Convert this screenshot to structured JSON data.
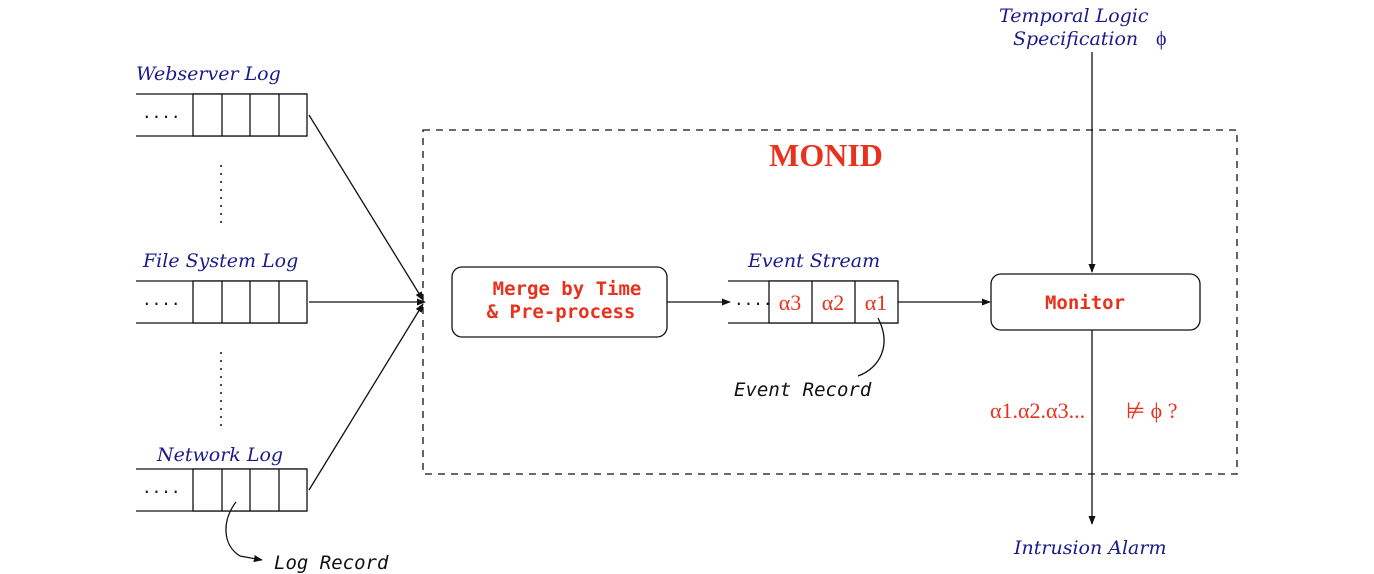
{
  "sources": {
    "webserver_log": "Webserver Log",
    "file_system_log": "File System Log",
    "network_log": "Network Log",
    "queue_dots": "....",
    "log_record": "Log Record"
  },
  "monid": {
    "title": "MONID",
    "merge_line1": "Merge by Time",
    "merge_line2": "& Pre-process",
    "event_stream": "Event Stream",
    "stream_dots": "....",
    "events": [
      "α3",
      "α2",
      "α1"
    ],
    "event_record": "Event Record",
    "monitor": "Monitor",
    "check": "α1.α2.α3...",
    "check_symbol": "⊭ ϕ ?"
  },
  "spec": {
    "line1": "Temporal Logic",
    "line2": "Specification",
    "phi": "ϕ"
  },
  "alarm": "Intrusion Alarm"
}
